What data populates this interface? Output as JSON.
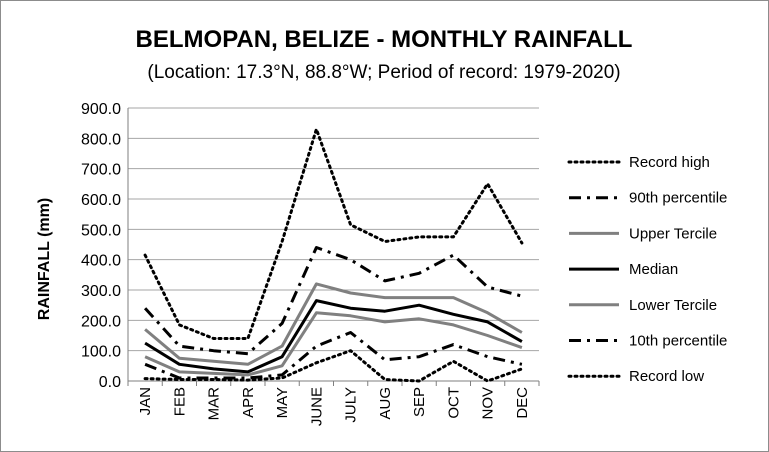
{
  "chart_data": {
    "type": "line",
    "title": "BELMOPAN, BELIZE - MONTHLY RAINFALL",
    "subtitle": "(Location: 17.3°N, 88.8°W; Period of record: 1979-2020)",
    "ylabel": "RAINFALL (mm)",
    "xlabel": "",
    "ylim": [
      0,
      900
    ],
    "ytick_step": 100,
    "ytick_labels": [
      "0.0",
      "100.0",
      "200.0",
      "300.0",
      "400.0",
      "500.0",
      "600.0",
      "700.0",
      "800.0",
      "900.0"
    ],
    "grid": "horizontal",
    "legend_position": "right",
    "categories": [
      "JAN",
      "FEB",
      "MAR",
      "APR",
      "MAY",
      "JUNE",
      "JULY",
      "AUG",
      "SEP",
      "OCT",
      "NOV",
      "DEC"
    ],
    "series": [
      {
        "name": "Record high",
        "style": "dotted",
        "color": "#000000",
        "values": [
          415,
          185,
          140,
          140,
          460,
          830,
          515,
          460,
          475,
          475,
          650,
          455
        ]
      },
      {
        "name": "90th percentile",
        "style": "dashdot",
        "color": "#000000",
        "values": [
          240,
          115,
          100,
          90,
          190,
          440,
          400,
          330,
          355,
          415,
          310,
          280
        ]
      },
      {
        "name": "Upper Tercile",
        "style": "solid",
        "color": "#808080",
        "values": [
          170,
          75,
          65,
          55,
          115,
          320,
          290,
          275,
          275,
          275,
          225,
          160
        ]
      },
      {
        "name": "Median",
        "style": "solid",
        "color": "#000000",
        "values": [
          125,
          55,
          40,
          30,
          80,
          265,
          240,
          230,
          250,
          220,
          195,
          130
        ]
      },
      {
        "name": "Lower Tercile",
        "style": "solid",
        "color": "#808080",
        "values": [
          80,
          30,
          25,
          20,
          50,
          225,
          215,
          195,
          205,
          185,
          150,
          110
        ]
      },
      {
        "name": "10th percentile",
        "style": "dashdot",
        "color": "#000000",
        "values": [
          55,
          10,
          10,
          10,
          20,
          115,
          160,
          70,
          80,
          120,
          80,
          55
        ]
      },
      {
        "name": "Record low",
        "style": "dotted",
        "color": "#000000",
        "values": [
          8,
          5,
          5,
          3,
          10,
          60,
          100,
          5,
          0,
          65,
          0,
          40
        ]
      }
    ]
  }
}
